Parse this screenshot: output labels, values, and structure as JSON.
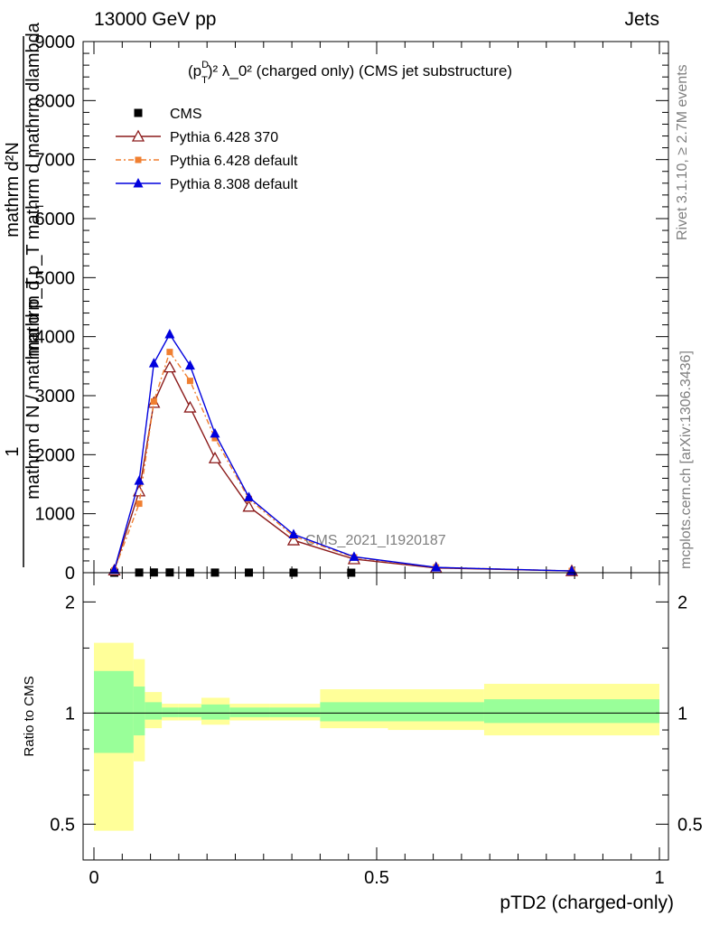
{
  "header": {
    "left": "13000 GeV pp",
    "right": "Jets"
  },
  "side_labels": {
    "rivet": "Rivet 3.1.10, ≥ 2.7M events",
    "mcplots": "mcplots.cern.ch [arXiv:1306.3436]"
  },
  "watermark": "CMS_2021_I1920187",
  "chart_data": [
    {
      "type": "line",
      "title_main": "(p",
      "title_sub": "T",
      "title_sup": "D",
      "title_rest": ")² λ_0² (charged only) (CMS jet substructure)",
      "ylabel_num": "mathrm d²N",
      "ylabel_den": "mathrm d p_T mathrm d mathrm dlambda",
      "ylabel_prefix_num": "1",
      "ylabel_prefix_den": "mathrm d N / mathrm d p_T",
      "ylabel_sub": "T",
      "xlim": [
        0,
        1
      ],
      "ylim": [
        0,
        9000
      ],
      "ytick_labels": [
        "0",
        "1000",
        "2000",
        "3000",
        "4000",
        "5000",
        "6000",
        "7000",
        "8000",
        "9000"
      ],
      "ytick_values": [
        0,
        1000,
        2000,
        3000,
        4000,
        5000,
        6000,
        7000,
        8000,
        9000
      ],
      "legend_position": "top-left",
      "series": [
        {
          "name": "CMS",
          "color": "#000000",
          "marker": "square",
          "x": [
            0.036,
            0.08,
            0.106,
            0.134,
            0.17,
            0.214,
            0.274,
            0.353,
            0.455
          ],
          "values": [
            0,
            3,
            4,
            4,
            3,
            2,
            2,
            1,
            0
          ]
        },
        {
          "name": "Pythia 6.428 370",
          "color": "#8b1a1a",
          "marker": "triangle-open",
          "x": [
            0.036,
            0.08,
            0.106,
            0.134,
            0.17,
            0.214,
            0.274,
            0.353,
            0.46,
            0.605,
            0.845
          ],
          "values": [
            40,
            1380,
            2880,
            3480,
            2800,
            1940,
            1120,
            550,
            230,
            80,
            30
          ]
        },
        {
          "name": "Pythia 6.428 default",
          "color": "#f07f30",
          "marker": "square-small",
          "dashed": true,
          "x": [
            0.036,
            0.08,
            0.106,
            0.134,
            0.17,
            0.214,
            0.274,
            0.353,
            0.46,
            0.605,
            0.845
          ],
          "values": [
            40,
            1170,
            2900,
            3740,
            3250,
            2280,
            1250,
            620,
            260,
            90,
            30
          ]
        },
        {
          "name": "Pythia 8.308 default",
          "color": "#0000dd",
          "marker": "triangle-filled",
          "x": [
            0.036,
            0.08,
            0.106,
            0.134,
            0.17,
            0.214,
            0.274,
            0.353,
            0.46,
            0.605,
            0.845
          ],
          "values": [
            50,
            1560,
            3550,
            4040,
            3510,
            2360,
            1280,
            650,
            270,
            90,
            30
          ]
        }
      ]
    },
    {
      "type": "area",
      "ylabel": "Ratio to CMS",
      "xlabel": "pTD2 (charged-only)",
      "xlim": [
        0,
        1
      ],
      "ylim": [
        0.4,
        2.4
      ],
      "log_y": true,
      "ytick_labels": [
        "0.5",
        "1",
        "2"
      ],
      "ytick_values": [
        0.5,
        1,
        2
      ],
      "xtick_labels": [
        "0",
        "0.5",
        "1"
      ],
      "xtick_values": [
        0,
        0.5,
        1
      ],
      "bands": {
        "edges": [
          0.0,
          0.07,
          0.09,
          0.12,
          0.15,
          0.19,
          0.24,
          0.31,
          0.4,
          0.52,
          0.69,
          1.0
        ],
        "stat_low": [
          0.78,
          0.87,
          0.96,
          0.975,
          0.975,
          0.96,
          0.975,
          0.975,
          0.95,
          0.95,
          0.94
        ],
        "stat_high": [
          1.3,
          1.18,
          1.07,
          1.035,
          1.035,
          1.055,
          1.035,
          1.035,
          1.07,
          1.07,
          1.09
        ],
        "tot_low": [
          0.48,
          0.74,
          0.91,
          0.955,
          0.955,
          0.93,
          0.955,
          0.955,
          0.91,
          0.9,
          0.87
        ],
        "tot_high": [
          1.55,
          1.4,
          1.14,
          1.06,
          1.06,
          1.1,
          1.06,
          1.06,
          1.16,
          1.16,
          1.2
        ]
      },
      "stat_color": "#99ff99",
      "tot_color": "#ffff99"
    }
  ]
}
